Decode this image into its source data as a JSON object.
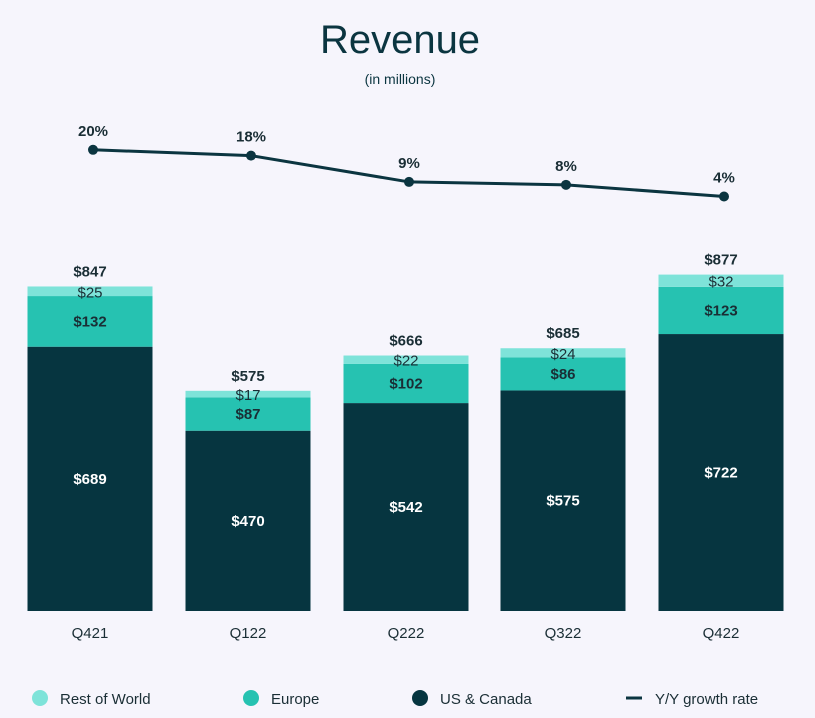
{
  "chart_data": {
    "type": "bar",
    "stacked": true,
    "title": "Revenue",
    "subtitle": "(in millions)",
    "categories": [
      "Q421",
      "Q122",
      "Q222",
      "Q322",
      "Q422"
    ],
    "series": [
      {
        "name": "US & Canada",
        "values": [
          689,
          470,
          542,
          575,
          722
        ],
        "color": "#063540",
        "labels": [
          "$689",
          "$470",
          "$542",
          "$575",
          "$722"
        ]
      },
      {
        "name": "Europe",
        "values": [
          132,
          87,
          102,
          86,
          123
        ],
        "color": "#26c2b1",
        "labels": [
          "$132",
          "$87",
          "$102",
          "$86",
          "$123"
        ]
      },
      {
        "name": "Rest of World",
        "values": [
          25,
          17,
          22,
          24,
          32
        ],
        "color": "#7ee3d9",
        "labels": [
          "$25",
          "$17",
          "$22",
          "$24",
          "$32"
        ]
      }
    ],
    "totals": [
      847,
      575,
      666,
      685,
      877
    ],
    "total_labels": [
      "$847",
      "$575",
      "$666",
      "$685",
      "$877"
    ],
    "growth": {
      "name": "Y/Y growth rate",
      "values": [
        20,
        18,
        9,
        8,
        4
      ],
      "labels": [
        "20%",
        "18%",
        "9%",
        "8%",
        "4%"
      ],
      "color": "#0b3540"
    },
    "legend": {
      "placement": "bottom",
      "items": [
        "Rest of World",
        "Europe",
        "US & Canada",
        "Y/Y growth rate"
      ]
    },
    "grid": false
  }
}
